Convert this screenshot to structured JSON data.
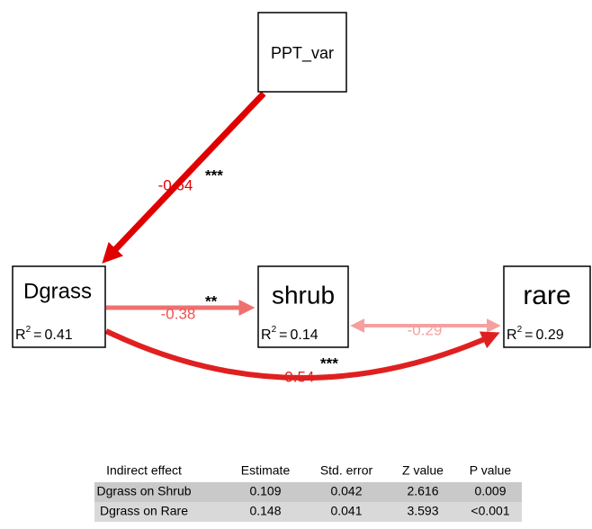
{
  "r2_symbol": "R",
  "r2_power": "2",
  "equals": "=",
  "nodes": [
    {
      "label": "PPT_var"
    },
    {
      "label": "Dgrass",
      "r2": 0.41
    },
    {
      "label": "shrub",
      "r2": 0.14
    },
    {
      "label": "rare",
      "r2": 0.29
    }
  ],
  "edges": [
    {
      "coefficient": -0.64,
      "significance": "***"
    },
    {
      "coefficient": -0.38,
      "significance": "**"
    },
    {
      "coefficient": -0.29
    },
    {
      "coefficient": -0.54,
      "significance": "***"
    }
  ],
  "table": {
    "headers": [
      "Indirect effect",
      "Estimate",
      "Std. error",
      "Z value",
      "P value"
    ],
    "rows": [
      [
        "Dgrass on Shrub",
        0.109,
        0.042,
        2.616,
        0.009
      ],
      [
        "Dgrass on Rare",
        0.148,
        0.041,
        3.593,
        "<0.001"
      ]
    ]
  }
}
